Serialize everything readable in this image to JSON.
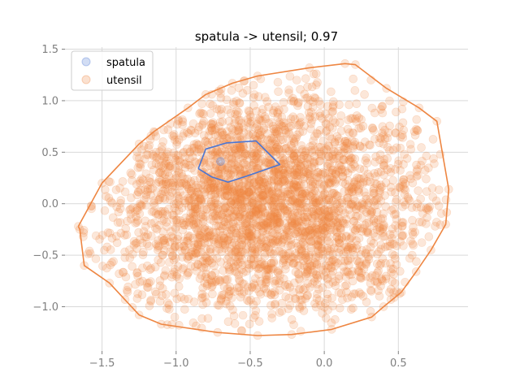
{
  "chart_data": {
    "type": "scatter",
    "title": "spatula -> utensil; 0.97",
    "xlabel": "",
    "ylabel": "",
    "xlim": [
      -1.75,
      0.97
    ],
    "ylim": [
      -1.43,
      1.52
    ],
    "xticks": [
      -1.5,
      -1.0,
      -0.5,
      0.0,
      0.5
    ],
    "xtick_labels": [
      "−1.5",
      "−1.0",
      "−0.5",
      "0.0",
      "0.5"
    ],
    "yticks": [
      -1.0,
      -0.5,
      0.0,
      0.5,
      1.0,
      1.5
    ],
    "ytick_labels": [
      "−1.0",
      "−0.5",
      "0.0",
      "0.5",
      "1.0",
      "1.5"
    ],
    "grid": true,
    "legend_position": "top-left",
    "series": [
      {
        "name": "spatula",
        "color": "#4a76d4",
        "points": [
          [
            -0.7,
            0.41
          ]
        ],
        "hull": [
          [
            -0.85,
            0.34
          ],
          [
            -0.8,
            0.53
          ],
          [
            -0.66,
            0.59
          ],
          [
            -0.46,
            0.61
          ],
          [
            -0.3,
            0.38
          ],
          [
            -0.52,
            0.27
          ],
          [
            -0.65,
            0.21
          ],
          [
            -0.76,
            0.26
          ]
        ]
      },
      {
        "name": "utensil",
        "color": "#ee8642",
        "point_count": 3000,
        "hull": [
          [
            -1.66,
            -0.22
          ],
          [
            -1.65,
            -0.25
          ],
          [
            -1.62,
            -0.6
          ],
          [
            -1.45,
            -0.77
          ],
          [
            -1.25,
            -1.08
          ],
          [
            -1.1,
            -1.17
          ],
          [
            -0.72,
            -1.25
          ],
          [
            -0.45,
            -1.28
          ],
          [
            -0.22,
            -1.27
          ],
          [
            0.05,
            -1.22
          ],
          [
            0.32,
            -1.1
          ],
          [
            0.4,
            -1.0
          ],
          [
            0.52,
            -0.86
          ],
          [
            0.62,
            -0.66
          ],
          [
            0.72,
            -0.45
          ],
          [
            0.82,
            -0.2
          ],
          [
            0.84,
            0.14
          ],
          [
            0.76,
            0.8
          ],
          [
            0.64,
            0.93
          ],
          [
            0.42,
            1.12
          ],
          [
            0.21,
            1.35
          ],
          [
            0.14,
            1.36
          ],
          [
            -0.1,
            1.32
          ],
          [
            -0.45,
            1.24
          ],
          [
            -0.62,
            1.17
          ],
          [
            -0.8,
            1.06
          ],
          [
            -0.92,
            0.93
          ],
          [
            -1.15,
            0.7
          ],
          [
            -1.25,
            0.58
          ],
          [
            -1.5,
            0.2
          ]
        ]
      }
    ]
  }
}
